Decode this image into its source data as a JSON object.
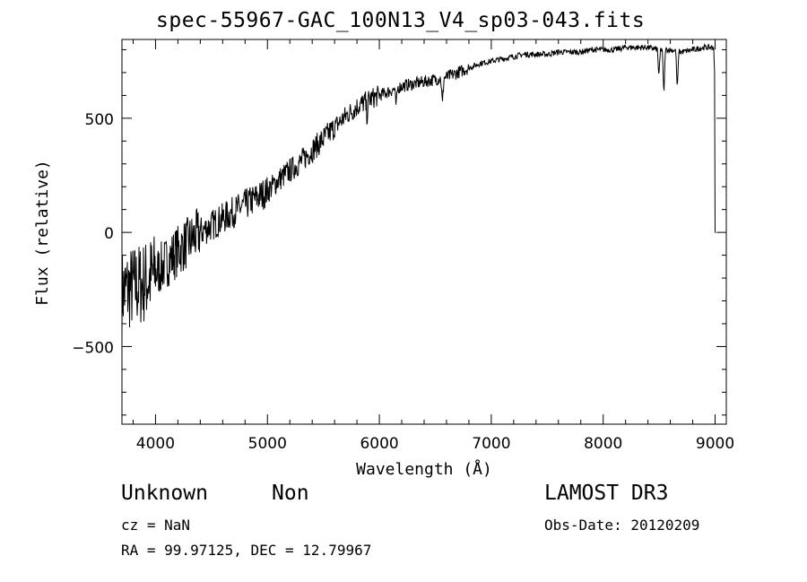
{
  "header": {
    "title": "spec-55967-GAC_100N13_V4_sp03-043.fits"
  },
  "info": {
    "class": "Unknown",
    "subclass": "Non",
    "survey": "LAMOST DR3",
    "cz_label": "cz = NaN",
    "obs_label": "Obs-Date: 20120209",
    "radec_label": "RA =  99.97125, DEC =  12.79967"
  },
  "chart_data": {
    "type": "line",
    "title": "spec-55967-GAC_100N13_V4_sp03-043.fits",
    "xlabel": "Wavelength (Å)",
    "ylabel": "Flux (relative)",
    "xlim": [
      3700,
      9100
    ],
    "ylim": [
      -840,
      845
    ],
    "xticks": [
      4000,
      5000,
      6000,
      7000,
      8000,
      9000
    ],
    "xtick_labels": [
      "4000",
      "5000",
      "6000",
      "7000",
      "8000",
      "9000"
    ],
    "yticks": [
      -500,
      0,
      500
    ],
    "ytick_labels": [
      "−500",
      "0",
      "500"
    ],
    "series": [
      {
        "name": "Flux",
        "color": "#000000",
        "x": [
          3700,
          3800,
          3900,
          4000,
          4100,
          4200,
          4300,
          4400,
          4500,
          4600,
          4700,
          4800,
          4900,
          5000,
          5100,
          5200,
          5300,
          5400,
          5500,
          5600,
          5700,
          5800,
          5900,
          6000,
          6100,
          6200,
          6300,
          6400,
          6500,
          6600,
          6700,
          6800,
          6900,
          7000,
          7100,
          7200,
          7300,
          7400,
          7500,
          7600,
          7700,
          7800,
          7900,
          8000,
          8100,
          8200,
          8300,
          8400,
          8500,
          8600,
          8700,
          8800,
          8900,
          9000
        ],
        "y": [
          -260,
          -240,
          -220,
          -180,
          -130,
          -80,
          -40,
          0,
          30,
          60,
          90,
          120,
          150,
          180,
          230,
          270,
          310,
          360,
          410,
          460,
          510,
          550,
          580,
          600,
          620,
          640,
          650,
          660,
          670,
          680,
          700,
          720,
          740,
          750,
          760,
          770,
          780,
          780,
          780,
          790,
          790,
          790,
          800,
          800,
          800,
          810,
          810,
          810,
          800,
          800,
          790,
          800,
          810,
          810
        ]
      }
    ],
    "features": [
      {
        "x": 8542,
        "depth": 200
      },
      {
        "x": 8662,
        "depth": 170
      },
      {
        "x": 8498,
        "depth": 120
      },
      {
        "x": 6563,
        "depth": 120
      },
      {
        "x": 6150,
        "depth": 80
      },
      {
        "x": 5890,
        "depth": 70
      }
    ]
  }
}
